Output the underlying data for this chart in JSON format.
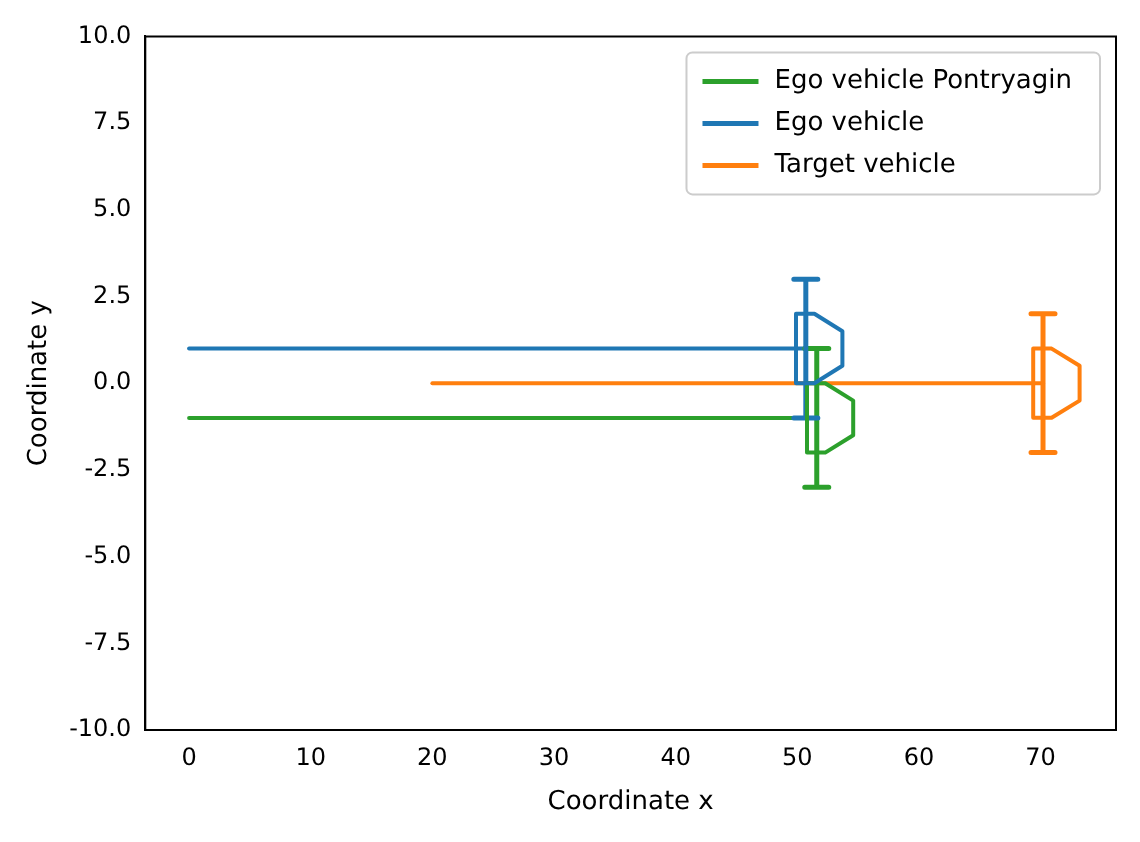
{
  "chart_data": {
    "type": "line",
    "xlabel": "Coordinate x",
    "ylabel": "Coordinate y",
    "series": [
      {
        "name": "Ego vehicle Pontryagin",
        "color": "#2ca02c",
        "x": [
          0,
          51.6
        ],
        "values": [
          -1,
          -1
        ],
        "errors": [
          null,
          2
        ]
      },
      {
        "name": "Ego vehicle",
        "color": "#1f77b4",
        "x": [
          0,
          50.7
        ],
        "values": [
          1,
          1
        ],
        "errors": [
          null,
          2
        ]
      },
      {
        "name": "Target vehicle",
        "color": "#ff7f0e",
        "x": [
          20,
          70.2
        ],
        "values": [
          0,
          0
        ],
        "errors": [
          null,
          2
        ]
      }
    ],
    "xlim": [
      -3.6,
      76.2
    ],
    "xticks": [
      0,
      10,
      20,
      30,
      40,
      50,
      60,
      70
    ],
    "ylim": [
      -10,
      10
    ],
    "yticks": [
      {
        "value": -10,
        "label": "-10.0"
      },
      {
        "value": -7.5,
        "label": "-7.5"
      },
      {
        "value": -5,
        "label": "-5.0"
      },
      {
        "value": -2.5,
        "label": "-2.5"
      },
      {
        "value": 0,
        "label": "0.0"
      },
      {
        "value": 2.5,
        "label": "2.5"
      },
      {
        "value": 5,
        "label": "5.0"
      },
      {
        "value": 7.5,
        "label": "7.5"
      },
      {
        "value": 10,
        "label": "10.0"
      }
    ],
    "legend": "top right",
    "grid": false,
    "marker": "none",
    "line_style": "solid"
  }
}
